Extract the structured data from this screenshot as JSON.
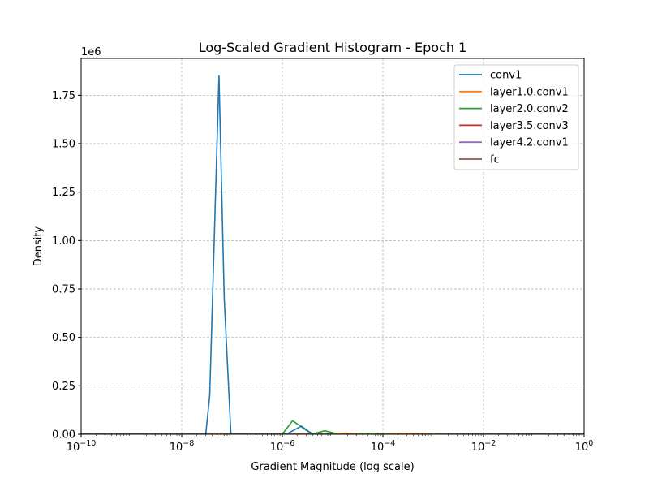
{
  "chart_data": {
    "type": "line",
    "title": "Log-Scaled Gradient Histogram - Epoch 1",
    "xlabel": "Gradient Magnitude (log scale)",
    "ylabel": "Density",
    "x_scale": "log",
    "xlim": [
      1e-10,
      1
    ],
    "ylim": [
      0,
      1940000
    ],
    "y_offset_label": "1e6",
    "x_ticks": [
      {
        "value": 1e-10,
        "base": "10",
        "exp": "−10"
      },
      {
        "value": 1e-08,
        "base": "10",
        "exp": "−8"
      },
      {
        "value": 1e-06,
        "base": "10",
        "exp": "−6"
      },
      {
        "value": 0.0001,
        "base": "10",
        "exp": "−4"
      },
      {
        "value": 0.01,
        "base": "10",
        "exp": "−2"
      },
      {
        "value": 1,
        "base": "10",
        "exp": "0"
      }
    ],
    "y_ticks": [
      {
        "value": 0,
        "label": "0.00"
      },
      {
        "value": 250000,
        "label": "0.25"
      },
      {
        "value": 500000,
        "label": "0.50"
      },
      {
        "value": 750000,
        "label": "0.75"
      },
      {
        "value": 1000000,
        "label": "1.00"
      },
      {
        "value": 1250000,
        "label": "1.25"
      },
      {
        "value": 1500000,
        "label": "1.50"
      },
      {
        "value": 1750000,
        "label": "1.75"
      }
    ],
    "grid": true,
    "legend_position": "top-right",
    "series": [
      {
        "name": "conv1",
        "color": "#1f77b4",
        "points": [
          [
            1e-10,
            0
          ],
          [
            3e-08,
            0
          ],
          [
            3.6e-08,
            200000
          ],
          [
            5.5e-08,
            1850000
          ],
          [
            7e-08,
            700000
          ],
          [
            9.5e-08,
            0
          ],
          [
            1.2e-06,
            0
          ],
          [
            2.4e-06,
            42000
          ],
          [
            4e-06,
            0
          ],
          [
            1,
            0
          ]
        ]
      },
      {
        "name": "layer1.0.conv1",
        "color": "#ff7f0e",
        "points": [
          [
            1e-10,
            0
          ],
          [
            1e-05,
            0
          ],
          [
            1.8e-05,
            6000
          ],
          [
            3e-05,
            2000
          ],
          [
            0.0001,
            1500
          ],
          [
            0.0003,
            4000
          ],
          [
            0.001,
            1500
          ],
          [
            0.003,
            0
          ],
          [
            1,
            0
          ]
        ]
      },
      {
        "name": "layer2.0.conv2",
        "color": "#2ca02c",
        "points": [
          [
            1e-10,
            0
          ],
          [
            1e-06,
            0
          ],
          [
            1.6e-06,
            70000
          ],
          [
            3e-06,
            20000
          ],
          [
            4e-06,
            2000
          ],
          [
            7e-06,
            18000
          ],
          [
            1.2e-05,
            3000
          ],
          [
            2e-05,
            0
          ],
          [
            6e-05,
            5000
          ],
          [
            0.0001,
            2000
          ],
          [
            0.0005,
            1000
          ],
          [
            0.003,
            0
          ],
          [
            1,
            0
          ]
        ]
      },
      {
        "name": "layer3.5.conv3",
        "color": "#d62728",
        "points": [
          [
            1e-10,
            0
          ],
          [
            1,
            0
          ]
        ]
      },
      {
        "name": "layer4.2.conv1",
        "color": "#9467bd",
        "points": [
          [
            1e-10,
            0
          ],
          [
            1,
            0
          ]
        ]
      },
      {
        "name": "fc",
        "color": "#8c564b",
        "points": [
          [
            1e-10,
            0
          ],
          [
            1,
            0
          ]
        ]
      }
    ]
  }
}
